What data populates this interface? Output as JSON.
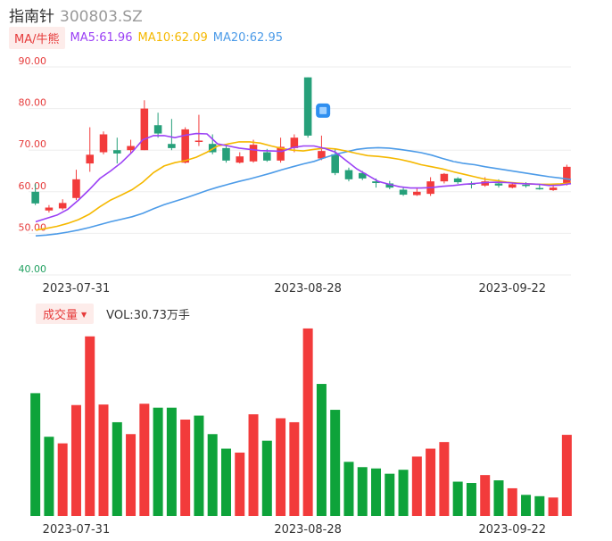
{
  "header": {
    "name": "指南针",
    "code": "300803.SZ"
  },
  "legend": {
    "pill_label": "MA/牛熊",
    "ma5": "MA5:61.96",
    "ma10": "MA10:62.09",
    "ma20": "MA20:62.95"
  },
  "volume_legend": {
    "pill_label": "成交量",
    "vol": "VOL:30.73万手"
  },
  "colors": {
    "up": "#f23b3b",
    "down": "#0ea33a",
    "down_candle": "#26a07a",
    "ma5": "#9b41f5",
    "ma10": "#f5b800",
    "ma20": "#4c9be8"
  },
  "chart_data": [
    {
      "type": "candlestick",
      "ylim": [
        40,
        90
      ],
      "yticks": [
        "90.00",
        "80.00",
        "70.00",
        "60.00",
        "50.00",
        "40.00"
      ],
      "xtick_labels": [
        {
          "index": 3,
          "label": "2023-07-31"
        },
        {
          "index": 20,
          "label": "2023-08-28"
        },
        {
          "index": 35,
          "label": "2023-09-22"
        }
      ],
      "candles": [
        {
          "o": 60.0,
          "c": 57.2,
          "h": 62.0,
          "l": 56.8
        },
        {
          "o": 55.5,
          "c": 56.2,
          "h": 56.8,
          "l": 55.0
        },
        {
          "o": 56.0,
          "c": 57.3,
          "h": 58.2,
          "l": 55.6
        },
        {
          "o": 58.5,
          "c": 63.0,
          "h": 65.3,
          "l": 58.0
        },
        {
          "o": 66.8,
          "c": 68.9,
          "h": 75.5,
          "l": 64.8
        },
        {
          "o": 69.5,
          "c": 73.8,
          "h": 74.5,
          "l": 69.0
        },
        {
          "o": 70.0,
          "c": 69.2,
          "h": 73.0,
          "l": 66.8
        },
        {
          "o": 70.0,
          "c": 71.0,
          "h": 72.5,
          "l": 69.2
        },
        {
          "o": 70.0,
          "c": 80.0,
          "h": 82.0,
          "l": 70.0
        },
        {
          "o": 76.0,
          "c": 74.0,
          "h": 79.0,
          "l": 73.0
        },
        {
          "o": 71.5,
          "c": 70.5,
          "h": 77.5,
          "l": 70.0
        },
        {
          "o": 67.0,
          "c": 75.0,
          "h": 75.5,
          "l": 66.8
        },
        {
          "o": 72.0,
          "c": 72.3,
          "h": 78.5,
          "l": 71.0
        },
        {
          "o": 71.5,
          "c": 69.5,
          "h": 73.8,
          "l": 69.0
        },
        {
          "o": 70.5,
          "c": 67.5,
          "h": 71.0,
          "l": 67.0
        },
        {
          "o": 67.0,
          "c": 68.5,
          "h": 69.5,
          "l": 66.8
        },
        {
          "o": 67.3,
          "c": 71.3,
          "h": 72.5,
          "l": 67.0
        },
        {
          "o": 69.5,
          "c": 67.5,
          "h": 70.3,
          "l": 67.2
        },
        {
          "o": 67.5,
          "c": 70.8,
          "h": 73.0,
          "l": 67.0
        },
        {
          "o": 70.5,
          "c": 73.0,
          "h": 73.8,
          "l": 69.5
        },
        {
          "o": 87.5,
          "c": 73.5,
          "h": 87.5,
          "l": 73.0
        },
        {
          "o": 68.0,
          "c": 69.8,
          "h": 73.5,
          "l": 67.6
        },
        {
          "o": 69.0,
          "c": 64.5,
          "h": 70.2,
          "l": 64.0
        },
        {
          "o": 65.2,
          "c": 63.0,
          "h": 65.8,
          "l": 62.5
        },
        {
          "o": 64.5,
          "c": 63.2,
          "h": 65.0,
          "l": 62.8
        },
        {
          "o": 62.5,
          "c": 62.1,
          "h": 63.2,
          "l": 61.0
        },
        {
          "o": 62.0,
          "c": 61.0,
          "h": 62.6,
          "l": 60.6
        },
        {
          "o": 60.5,
          "c": 59.3,
          "h": 61.0,
          "l": 59.0
        },
        {
          "o": 59.2,
          "c": 60.0,
          "h": 61.0,
          "l": 59.0
        },
        {
          "o": 59.5,
          "c": 62.5,
          "h": 63.5,
          "l": 59.0
        },
        {
          "o": 62.5,
          "c": 64.3,
          "h": 64.5,
          "l": 62.0
        },
        {
          "o": 63.2,
          "c": 62.3,
          "h": 63.5,
          "l": 61.9
        },
        {
          "o": 62.0,
          "c": 61.8,
          "h": 62.5,
          "l": 60.8
        },
        {
          "o": 61.5,
          "c": 62.5,
          "h": 63.5,
          "l": 61.2
        },
        {
          "o": 62.0,
          "c": 61.5,
          "h": 63.0,
          "l": 61.0
        },
        {
          "o": 61.0,
          "c": 61.8,
          "h": 62.2,
          "l": 60.8
        },
        {
          "o": 61.7,
          "c": 61.5,
          "h": 62.3,
          "l": 61.0
        },
        {
          "o": 60.9,
          "c": 60.7,
          "h": 61.8,
          "l": 60.5
        },
        {
          "o": 60.4,
          "c": 61.0,
          "h": 61.6,
          "l": 60.2
        },
        {
          "o": 62.0,
          "c": 66.0,
          "h": 66.5,
          "l": 61.5
        }
      ],
      "ma5": [
        52.8,
        53.6,
        54.4,
        55.8,
        58.0,
        60.5,
        63.2,
        65.0,
        67.0,
        69.5,
        72.5,
        73.5,
        73.5,
        73.0,
        73.6,
        74.0,
        73.9,
        71.5,
        71.0,
        70.5,
        70.2,
        69.9,
        69.8,
        69.7,
        70.6,
        71.0,
        71.0,
        70.4,
        69.5,
        67.5,
        65.5,
        64.0,
        62.5,
        61.8,
        61.2,
        60.9,
        60.9,
        61.0,
        61.3,
        61.5,
        61.8,
        62.0,
        62.2,
        62.3,
        62.2,
        62.0,
        61.9,
        61.8,
        61.5,
        61.6,
        61.96
      ],
      "ma10": [
        50.8,
        51.2,
        51.7,
        52.4,
        53.3,
        54.6,
        56.4,
        58.0,
        59.2,
        60.5,
        62.3,
        64.6,
        66.2,
        67.0,
        67.5,
        68.3,
        69.5,
        71.0,
        71.5,
        72.0,
        72.0,
        71.7,
        71.0,
        70.4,
        70.0,
        69.8,
        70.2,
        70.5,
        70.3,
        69.8,
        69.2,
        68.7,
        68.5,
        68.2,
        67.8,
        67.2,
        66.5,
        66.0,
        65.5,
        64.8,
        64.2,
        63.6,
        63.0,
        62.7,
        62.3,
        62.1,
        61.9,
        61.8,
        61.8,
        61.9,
        62.09
      ],
      "ma20": [
        49.4,
        49.6,
        49.9,
        50.3,
        50.8,
        51.4,
        52.1,
        52.8,
        53.4,
        54.0,
        54.8,
        55.9,
        56.9,
        57.7,
        58.5,
        59.4,
        60.3,
        61.1,
        61.8,
        62.5,
        63.1,
        63.8,
        64.5,
        65.3,
        66.0,
        66.7,
        67.3,
        68.2,
        69.0,
        69.6,
        70.2,
        70.5,
        70.6,
        70.5,
        70.2,
        69.8,
        69.4,
        68.8,
        68.0,
        67.3,
        66.8,
        66.5,
        66.0,
        65.6,
        65.2,
        64.8,
        64.4,
        64.0,
        63.6,
        63.3,
        62.95
      ]
    },
    {
      "type": "bar",
      "title": "成交量",
      "unit": "万手",
      "ylim": [
        0,
        73
      ],
      "last_value": 30.73,
      "values": [
        46.5,
        30.0,
        27.5,
        42.0,
        68.0,
        42.2,
        35.5,
        31.0,
        42.5,
        41.0,
        41.0,
        36.5,
        38.0,
        31.0,
        25.5,
        24.0,
        38.5,
        28.5,
        37.0,
        35.5,
        71.0,
        50.0,
        40.2,
        20.5,
        18.5,
        18.0,
        16.0,
        17.5,
        22.5,
        25.5,
        28.0,
        13.0,
        12.5,
        15.5,
        13.5,
        10.5,
        8.0,
        7.5,
        7.0,
        30.73
      ],
      "direction": [
        "down",
        "down",
        "up",
        "up",
        "up",
        "up",
        "down",
        "up",
        "up",
        "down",
        "down",
        "up",
        "down",
        "down",
        "down",
        "up",
        "up",
        "down",
        "up",
        "up",
        "up",
        "down",
        "down",
        "down",
        "down",
        "down",
        "down",
        "down",
        "up",
        "up",
        "up",
        "down",
        "down",
        "up",
        "down",
        "up",
        "down",
        "down",
        "up",
        "up"
      ]
    }
  ]
}
